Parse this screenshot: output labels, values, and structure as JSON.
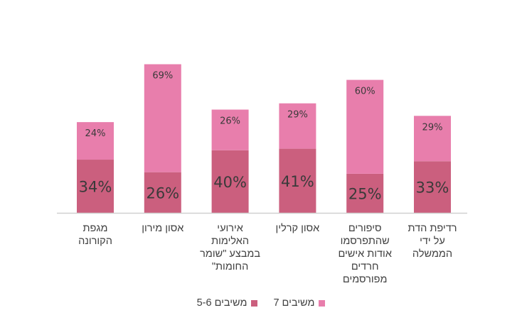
{
  "chart_data": {
    "type": "bar",
    "stacked": true,
    "categories": [
      [
        "מגפת",
        "הקורונה"
      ],
      [
        "אסון מירון"
      ],
      [
        "אירועי",
        "האלימות",
        "במבצע \"שומר",
        "החומות\""
      ],
      [
        "אסון קרלין"
      ],
      [
        "סיפורים",
        "שהתפרסמו",
        "אודות אישים",
        "חרדים",
        "מפורסמים"
      ],
      [
        "רדיפת הדת",
        "על ידי",
        "הממשלה"
      ]
    ],
    "series": [
      {
        "name": "משיבים 5-6",
        "values": [
          34,
          26,
          40,
          41,
          25,
          33
        ],
        "labels": [
          "34%",
          "26%",
          "40%",
          "41%",
          "25%",
          "33%"
        ],
        "color": "#cb5f7e"
      },
      {
        "name": "משיבים 7",
        "values": [
          24,
          69,
          26,
          29,
          60,
          29
        ],
        "labels": [
          "24%",
          "69%",
          "26%",
          "29%",
          "60%",
          "29%"
        ],
        "color": "#e87eac"
      }
    ],
    "legend_position": "bottom",
    "ylim": [
      0,
      100
    ],
    "grid": false
  }
}
